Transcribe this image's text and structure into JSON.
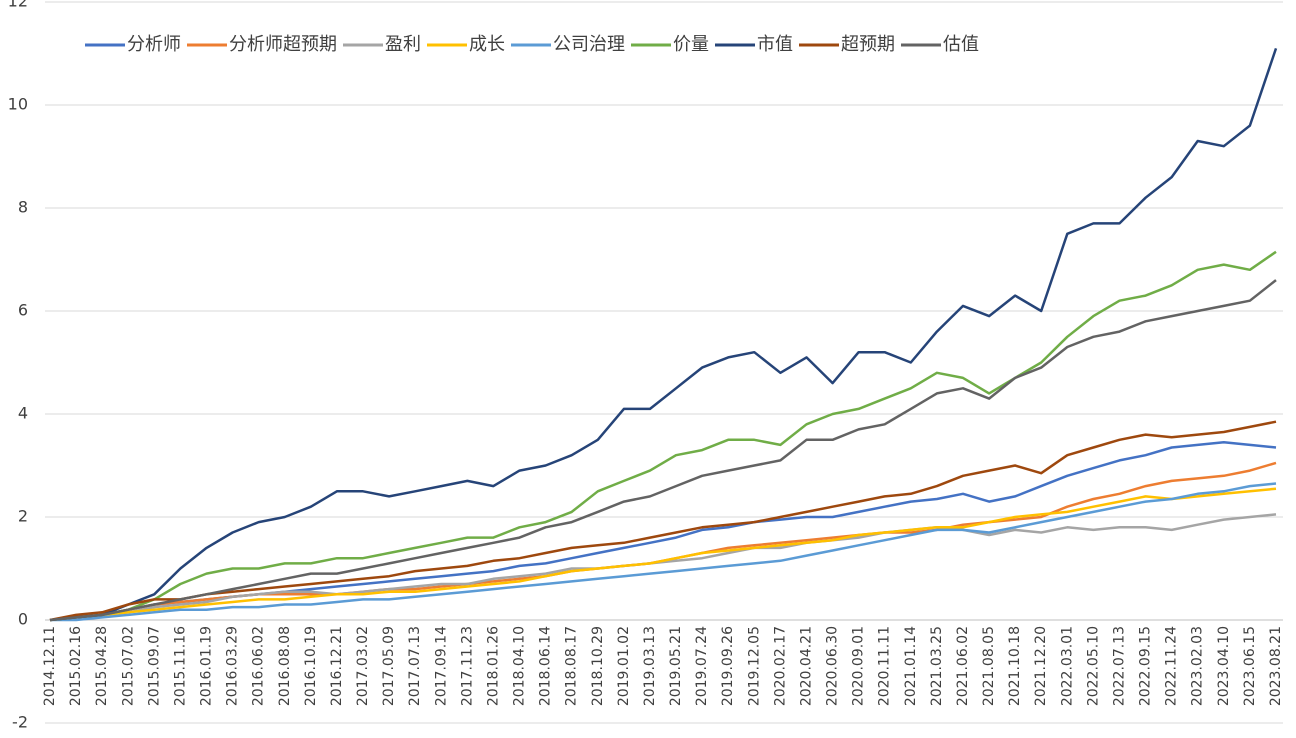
{
  "chart_data": {
    "type": "line",
    "categories": [
      "2014.12.11",
      "2015.02.16",
      "2015.04.28",
      "2015.07.02",
      "2015.09.07",
      "2015.11.16",
      "2016.01.19",
      "2016.03.29",
      "2016.06.02",
      "2016.08.08",
      "2016.10.19",
      "2016.12.21",
      "2017.03.02",
      "2017.05.09",
      "2017.07.13",
      "2017.09.14",
      "2017.11.23",
      "2018.01.26",
      "2018.04.10",
      "2018.06.14",
      "2018.08.17",
      "2018.10.29",
      "2019.01.02",
      "2019.03.13",
      "2019.05.21",
      "2019.07.24",
      "2019.09.26",
      "2019.12.05",
      "2020.02.17",
      "2020.04.21",
      "2020.06.30",
      "2020.09.01",
      "2020.11.11",
      "2021.01.14",
      "2021.03.25",
      "2021.06.02",
      "2021.08.05",
      "2021.10.18",
      "2021.12.20",
      "2022.03.01",
      "2022.05.10",
      "2022.07.13",
      "2022.09.15",
      "2022.11.24",
      "2023.02.03",
      "2023.04.10",
      "2023.06.15",
      "2023.08.21"
    ],
    "series": [
      {
        "name": "分析师",
        "color": "#4472c4",
        "values": [
          0,
          0.05,
          0.1,
          0.2,
          0.3,
          0.35,
          0.4,
          0.45,
          0.5,
          0.55,
          0.6,
          0.65,
          0.7,
          0.75,
          0.8,
          0.85,
          0.9,
          0.95,
          1.05,
          1.1,
          1.2,
          1.3,
          1.4,
          1.5,
          1.6,
          1.75,
          1.8,
          1.9,
          1.95,
          2.0,
          2.0,
          2.1,
          2.2,
          2.3,
          2.35,
          2.45,
          2.3,
          2.4,
          2.6,
          2.8,
          2.95,
          3.1,
          3.2,
          3.35,
          3.4,
          3.45,
          3.4,
          3.35
        ]
      },
      {
        "name": "分析师超预期",
        "color": "#ed7d31",
        "values": [
          0,
          0.05,
          0.1,
          0.2,
          0.3,
          0.35,
          0.4,
          0.45,
          0.5,
          0.5,
          0.5,
          0.5,
          0.55,
          0.6,
          0.6,
          0.65,
          0.7,
          0.75,
          0.8,
          0.85,
          0.95,
          1.0,
          1.05,
          1.1,
          1.2,
          1.3,
          1.4,
          1.45,
          1.5,
          1.55,
          1.6,
          1.65,
          1.7,
          1.7,
          1.75,
          1.85,
          1.9,
          1.95,
          2.0,
          2.2,
          2.35,
          2.45,
          2.6,
          2.7,
          2.75,
          2.8,
          2.9,
          3.05
        ]
      },
      {
        "name": "盈利",
        "color": "#a5a5a5",
        "values": [
          0,
          0.05,
          0.1,
          0.15,
          0.25,
          0.3,
          0.35,
          0.45,
          0.5,
          0.55,
          0.55,
          0.5,
          0.55,
          0.6,
          0.65,
          0.7,
          0.7,
          0.8,
          0.85,
          0.9,
          1.0,
          1.0,
          1.05,
          1.1,
          1.15,
          1.2,
          1.3,
          1.4,
          1.4,
          1.5,
          1.55,
          1.6,
          1.7,
          1.75,
          1.8,
          1.75,
          1.65,
          1.75,
          1.7,
          1.8,
          1.75,
          1.8,
          1.8,
          1.75,
          1.85,
          1.95,
          2.0,
          2.05
        ]
      },
      {
        "name": "成长",
        "color": "#ffc000",
        "values": [
          0,
          0.05,
          0.1,
          0.15,
          0.2,
          0.25,
          0.3,
          0.35,
          0.4,
          0.4,
          0.45,
          0.5,
          0.5,
          0.55,
          0.55,
          0.6,
          0.65,
          0.7,
          0.75,
          0.85,
          0.95,
          1.0,
          1.05,
          1.1,
          1.2,
          1.3,
          1.35,
          1.4,
          1.45,
          1.5,
          1.55,
          1.65,
          1.7,
          1.75,
          1.8,
          1.8,
          1.9,
          2.0,
          2.05,
          2.1,
          2.2,
          2.3,
          2.4,
          2.35,
          2.4,
          2.45,
          2.5,
          2.55
        ]
      },
      {
        "name": "公司治理",
        "color": "#5b9bd5",
        "values": [
          0,
          0.0,
          0.05,
          0.1,
          0.15,
          0.2,
          0.2,
          0.25,
          0.25,
          0.3,
          0.3,
          0.35,
          0.4,
          0.4,
          0.45,
          0.5,
          0.55,
          0.6,
          0.65,
          0.7,
          0.75,
          0.8,
          0.85,
          0.9,
          0.95,
          1.0,
          1.05,
          1.1,
          1.15,
          1.25,
          1.35,
          1.45,
          1.55,
          1.65,
          1.75,
          1.75,
          1.7,
          1.8,
          1.9,
          2.0,
          2.1,
          2.2,
          2.3,
          2.35,
          2.45,
          2.5,
          2.6,
          2.65
        ]
      },
      {
        "name": "价量",
        "color": "#70ad47",
        "values": [
          0,
          0.05,
          0.1,
          0.2,
          0.4,
          0.7,
          0.9,
          1.0,
          1.0,
          1.1,
          1.1,
          1.2,
          1.2,
          1.3,
          1.4,
          1.5,
          1.6,
          1.6,
          1.8,
          1.9,
          2.1,
          2.5,
          2.7,
          2.9,
          3.2,
          3.3,
          3.5,
          3.5,
          3.4,
          3.8,
          4.0,
          4.1,
          4.3,
          4.5,
          4.8,
          4.7,
          4.4,
          4.7,
          5.0,
          5.5,
          5.9,
          6.2,
          6.3,
          6.5,
          6.8,
          6.9,
          6.8,
          7.15
        ]
      },
      {
        "name": "市值",
        "color": "#264478",
        "values": [
          0,
          0.05,
          0.1,
          0.3,
          0.5,
          1.0,
          1.4,
          1.7,
          1.9,
          2.0,
          2.2,
          2.5,
          2.5,
          2.4,
          2.5,
          2.6,
          2.7,
          2.6,
          2.9,
          3.0,
          3.2,
          3.5,
          4.1,
          4.1,
          4.5,
          4.9,
          5.1,
          5.2,
          4.8,
          5.1,
          4.6,
          5.2,
          5.2,
          5.0,
          5.6,
          6.1,
          5.9,
          6.3,
          6.0,
          7.5,
          7.7,
          7.7,
          8.2,
          8.6,
          9.3,
          9.2,
          9.6,
          11.1
        ]
      },
      {
        "name": "超预期",
        "color": "#9e480e",
        "values": [
          0,
          0.1,
          0.15,
          0.3,
          0.4,
          0.4,
          0.5,
          0.55,
          0.6,
          0.65,
          0.7,
          0.75,
          0.8,
          0.85,
          0.95,
          1.0,
          1.05,
          1.15,
          1.2,
          1.3,
          1.4,
          1.45,
          1.5,
          1.6,
          1.7,
          1.8,
          1.85,
          1.9,
          2.0,
          2.1,
          2.2,
          2.3,
          2.4,
          2.45,
          2.6,
          2.8,
          2.9,
          3.0,
          2.85,
          3.2,
          3.35,
          3.5,
          3.6,
          3.55,
          3.6,
          3.65,
          3.75,
          3.85
        ]
      },
      {
        "name": "估值",
        "color": "#636363",
        "values": [
          0,
          0.05,
          0.1,
          0.2,
          0.3,
          0.4,
          0.5,
          0.6,
          0.7,
          0.8,
          0.9,
          0.9,
          1.0,
          1.1,
          1.2,
          1.3,
          1.4,
          1.5,
          1.6,
          1.8,
          1.9,
          2.1,
          2.3,
          2.4,
          2.6,
          2.8,
          2.9,
          3.0,
          3.1,
          3.5,
          3.5,
          3.7,
          3.8,
          4.1,
          4.4,
          4.5,
          4.3,
          4.7,
          4.9,
          5.3,
          5.5,
          5.6,
          5.8,
          5.9,
          6.0,
          6.1,
          6.2,
          6.6
        ]
      }
    ],
    "ylim": [
      -2,
      12
    ],
    "yticks": [
      -2,
      0,
      2,
      4,
      6,
      8,
      10,
      12
    ],
    "grid": true,
    "legend": "top"
  }
}
